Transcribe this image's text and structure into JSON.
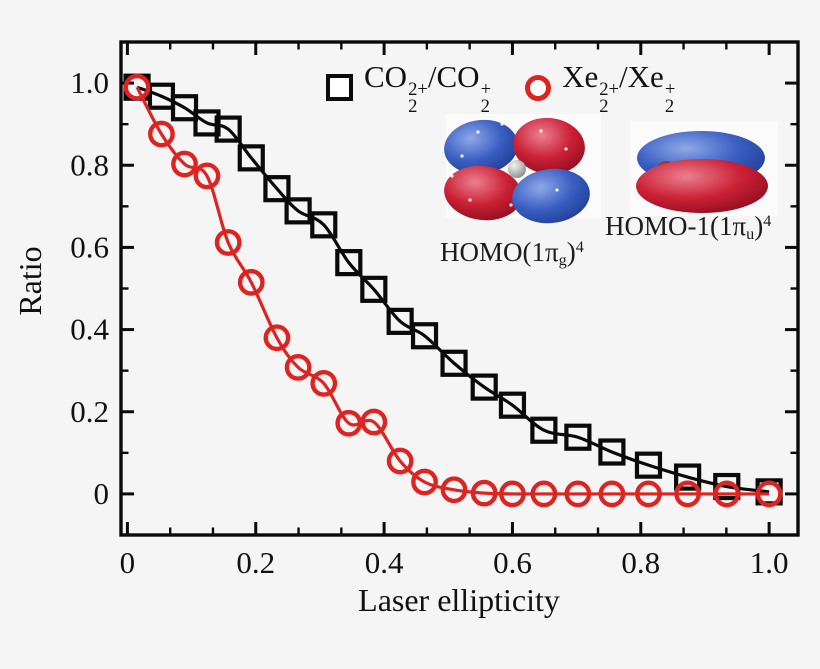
{
  "figure": {
    "background": "#f5f5f6",
    "frame_color": "#0a0a0a",
    "text_color": "#111111"
  },
  "chart_data": {
    "type": "scatter",
    "title": "",
    "xlabel": "Laser ellipticity",
    "ylabel": "Ratio",
    "xlim": [
      -0.01,
      1.045
    ],
    "ylim": [
      -0.1,
      1.1
    ],
    "grid": false,
    "legend_position": "top-center-inside",
    "x_major_ticks": [
      0,
      0.2,
      0.4,
      0.6,
      0.8,
      1.0
    ],
    "x_tick_labels": [
      "0",
      "0.2",
      "0.4",
      "0.6",
      "0.8",
      "1.0"
    ],
    "x_minor_per_interval": 2,
    "y_major_ticks": [
      0,
      0.2,
      0.4,
      0.6,
      0.8,
      1.0
    ],
    "y_tick_labels": [
      "0",
      "0.2",
      "0.4",
      "0.6",
      "0.8",
      "1.0"
    ],
    "y_minor_per_interval": 1,
    "x": [
      0.015,
      0.053,
      0.089,
      0.124,
      0.157,
      0.193,
      0.233,
      0.266,
      0.306,
      0.345,
      0.384,
      0.425,
      0.463,
      0.509,
      0.556,
      0.6,
      0.649,
      0.702,
      0.755,
      0.812,
      0.873,
      0.934,
      1.0
    ],
    "series": [
      {
        "id": "co2",
        "name": "CO2^2+/CO2^+ ratio",
        "marker": "square",
        "color": "#0a0a0a",
        "fit_line": true,
        "legend_parts": [
          {
            "t": "CO",
            "sub": "2",
            "sup": "2+"
          },
          {
            "t": "/"
          },
          {
            "t": "CO",
            "sub": "2",
            "sup": "+"
          }
        ],
        "values": [
          0.99,
          0.968,
          0.94,
          0.903,
          0.888,
          0.818,
          0.743,
          0.689,
          0.655,
          0.563,
          0.498,
          0.42,
          0.385,
          0.318,
          0.26,
          0.216,
          0.155,
          0.138,
          0.102,
          0.07,
          0.041,
          0.018,
          0.005
        ]
      },
      {
        "id": "xe2",
        "name": "Xe2^2+/Xe2^+ ratio",
        "marker": "circle",
        "color": "#de2420",
        "fit_line": true,
        "legend_parts": [
          {
            "t": "Xe",
            "sub": "2",
            "sup": "2+"
          },
          {
            "t": "/"
          },
          {
            "t": "Xe",
            "sub": "2",
            "sup": "+"
          }
        ],
        "values": [
          0.99,
          0.876,
          0.803,
          0.774,
          0.612,
          0.515,
          0.38,
          0.308,
          0.269,
          0.172,
          0.175,
          0.08,
          0.029,
          0.01,
          0.002,
          0.0,
          0.0,
          0.0,
          0.0,
          0.0,
          0.0,
          0.0,
          0.0
        ]
      }
    ]
  },
  "annotations": {
    "orbital_left_label_parts": [
      {
        "t": "HOMO(1π",
        "sub": "g"
      },
      {
        "t": ")",
        "sup": "4"
      }
    ],
    "orbital_right_label_parts": [
      {
        "t": "HOMO-1(1π",
        "sub": "u"
      },
      {
        "t": ")",
        "sup": "4"
      }
    ]
  },
  "orbital_art": {
    "lobe_blue": "#2e51b5",
    "lobe_red": "#c41730",
    "carbon_gray": "#b9b9b9"
  }
}
